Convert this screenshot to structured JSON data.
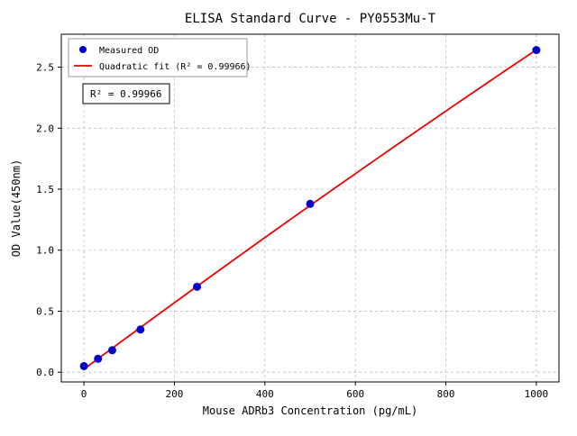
{
  "chart_data": {
    "type": "scatter",
    "title": "ELISA Standard Curve - PY0553Mu-T",
    "xlabel": "Mouse ADRb3 Concentration (pg/mL)",
    "ylabel": "OD Value(450nm)",
    "x": [
      0,
      31.2,
      62.5,
      125,
      250,
      500,
      1000
    ],
    "y": [
      0.05,
      0.11,
      0.18,
      0.35,
      0.7,
      1.38,
      2.64
    ],
    "fit": {
      "type": "quadratic",
      "r_squared": 0.99966,
      "label": "Quadratic fit (R² = 0.99966)"
    },
    "annotation": "R² = 0.99966",
    "legend": {
      "position": "upper-left",
      "entries": [
        {
          "label": "Measured OD",
          "marker": "dot",
          "color": "#0000cd"
        },
        {
          "label": "Quadratic fit (R² = 0.99966)",
          "marker": "line",
          "color": "#ee0000"
        }
      ]
    },
    "x_ticks": [
      0,
      200,
      400,
      600,
      800,
      1000
    ],
    "y_ticks": [
      0.0,
      0.5,
      1.0,
      1.5,
      2.0,
      2.5
    ],
    "xlim": [
      -50,
      1050
    ],
    "ylim": [
      -0.08,
      2.77
    ],
    "grid": true,
    "colors": {
      "point": "#0000cd",
      "line": "#ee0000",
      "grid": "#bdbdbd",
      "axis": "#000000",
      "background": "#ffffff"
    }
  }
}
